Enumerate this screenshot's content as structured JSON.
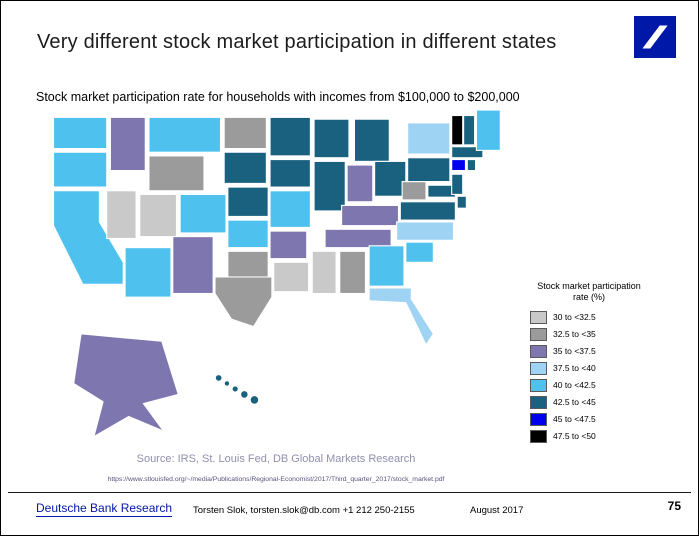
{
  "slide": {
    "title": "Very different stock market participation in different states",
    "subtitle": "Stock market participation rate for households with incomes from $100,000 to $200,000",
    "source": "Source: IRS, St. Louis Fed, DB Global Markets Research",
    "source_url": "https://www.stlouisfed.org/~/media/Publications/Regional-Economist/2017/Third_quarter_2017/stock_market.pdf",
    "footer": {
      "brand": "Deutsche Bank Research",
      "contact": "Torsten Slok, torsten.slok@db.com  +1 212 250-2155",
      "date": "August 2017",
      "page_number": "75"
    },
    "brand_color": "#0018a8"
  },
  "chart_data": {
    "type": "choropleth",
    "region": "United States",
    "title": "Stock market participation rate for households with incomes from $100,000 to $200,000",
    "legend_title": "Stock market participation rate (%)",
    "legend_position": "right",
    "unit": "percent",
    "categories": [
      {
        "label": "30 to <32.5",
        "color": "#c9c9c9"
      },
      {
        "label": "32.5 to <35",
        "color": "#9b9b9b"
      },
      {
        "label": "35 to <37.5",
        "color": "#7e76af"
      },
      {
        "label": "37.5 to <40",
        "color": "#9fd3f3"
      },
      {
        "label": "40 to <42.5",
        "color": "#4fc1ef"
      },
      {
        "label": "42.5 to <45",
        "color": "#1a617f"
      },
      {
        "label": "45 to <47.5",
        "color": "#0000ee"
      },
      {
        "label": "47.5 to <50",
        "color": "#000000"
      }
    ],
    "state_categories": {
      "WA": "40 to <42.5",
      "OR": "40 to <42.5",
      "CA": "40 to <42.5",
      "NV": "30 to <32.5",
      "ID": "35 to <37.5",
      "MT": "40 to <42.5",
      "WY": "32.5 to <35",
      "UT": "30 to <32.5",
      "CO": "40 to <42.5",
      "AZ": "40 to <42.5",
      "NM": "35 to <37.5",
      "ND": "32.5 to <35",
      "SD": "42.5 to <45",
      "NE": "42.5 to <45",
      "KS": "40 to <42.5",
      "OK": "32.5 to <35",
      "TX": "32.5 to <35",
      "MN": "42.5 to <45",
      "IA": "42.5 to <45",
      "MO": "40 to <42.5",
      "AR": "35 to <37.5",
      "LA": "30 to <32.5",
      "WI": "42.5 to <45",
      "IL": "42.5 to <45",
      "MI": "42.5 to <45",
      "IN": "35 to <37.5",
      "OH": "42.5 to <45",
      "KY": "35 to <37.5",
      "TN": "35 to <37.5",
      "MS": "30 to <32.5",
      "AL": "32.5 to <35",
      "GA": "40 to <42.5",
      "FL": "37.5 to <40",
      "SC": "40 to <42.5",
      "NC": "37.5 to <40",
      "VA": "42.5 to <45",
      "WV": "32.5 to <35",
      "PA": "42.5 to <45",
      "NY": "37.5 to <40",
      "NJ": "42.5 to <45",
      "DE": "42.5 to <45",
      "MD": "42.5 to <45",
      "CT": "45 to <47.5",
      "RI": "42.5 to <45",
      "MA": "42.5 to <45",
      "VT": "47.5 to <50",
      "NH": "42.5 to <45",
      "ME": "40 to <42.5",
      "AK": "35 to <37.5",
      "HI": "42.5 to <45"
    }
  }
}
